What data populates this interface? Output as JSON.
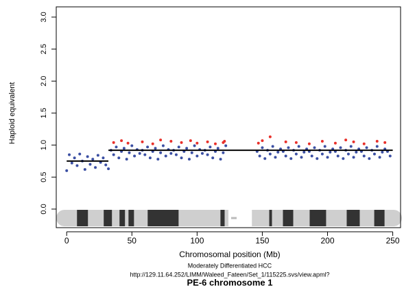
{
  "chart_data": {
    "type": "scatter",
    "title": "PE-6 chromosome 1",
    "subtitle": "Moderately Differentiated HCC",
    "source": "http://129.11.64.252/LIMM/Waleed_Fateen/Set_1/115225.svs/view.apml?",
    "x_label": "Chromosomal position (Mb)",
    "y_label": "Haploid equivalent",
    "xlim": [
      -8,
      256
    ],
    "ylim": [
      -0.29,
      3.16
    ],
    "xticks": [
      0,
      50,
      100,
      150,
      200,
      250
    ],
    "yticks": [
      {
        "value": 0,
        "label": "0.0"
      },
      {
        "value": 0.5,
        "label": "0.5"
      },
      {
        "value": 1,
        "label": "1.0"
      },
      {
        "value": 1.5,
        "label": "1.5"
      },
      {
        "value": 2,
        "label": "2.0"
      },
      {
        "value": 2.5,
        "label": "2.5"
      },
      {
        "value": 3,
        "label": "3.0"
      }
    ],
    "series": [
      {
        "color": "#3b4fa3",
        "x": [
          0,
          2,
          4,
          6,
          8,
          10,
          12,
          14,
          16,
          18,
          20,
          22,
          24,
          26,
          28,
          30,
          32,
          34,
          36,
          38,
          40,
          42,
          44,
          46,
          48,
          50,
          52,
          54,
          56,
          58,
          60,
          62,
          64,
          66,
          68,
          70,
          72,
          74,
          76,
          78,
          80,
          82,
          84,
          86,
          88,
          90,
          92,
          94,
          96,
          98,
          100,
          102,
          104,
          106,
          108,
          110,
          112,
          114,
          116,
          118,
          120,
          122,
          146,
          148,
          150,
          152,
          154,
          156,
          158,
          160,
          162,
          164,
          166,
          168,
          170,
          172,
          174,
          176,
          178,
          180,
          182,
          184,
          186,
          188,
          190,
          192,
          194,
          196,
          198,
          200,
          202,
          204,
          206,
          208,
          210,
          212,
          214,
          216,
          218,
          220,
          222,
          224,
          226,
          228,
          230,
          232,
          234,
          236,
          238,
          240,
          242,
          244,
          246,
          248
        ],
        "values": [
          0.6,
          0.85,
          0.72,
          0.8,
          0.68,
          0.86,
          0.75,
          0.62,
          0.82,
          0.7,
          0.78,
          0.65,
          0.84,
          0.73,
          0.8,
          0.69,
          0.63,
          0.92,
          0.85,
          0.97,
          0.8,
          0.9,
          0.95,
          0.78,
          0.88,
          0.99,
          0.83,
          0.93,
          0.87,
          0.92,
          0.85,
          0.97,
          0.8,
          0.9,
          0.95,
          0.78,
          0.88,
          0.99,
          0.83,
          0.93,
          0.87,
          0.92,
          0.85,
          0.97,
          0.8,
          0.9,
          0.95,
          0.78,
          0.88,
          0.99,
          0.83,
          0.93,
          0.87,
          0.92,
          0.85,
          0.97,
          0.8,
          0.9,
          0.95,
          0.78,
          0.88,
          0.99,
          0.9,
          0.83,
          0.96,
          0.79,
          0.92,
          0.86,
          0.98,
          0.81,
          0.89,
          0.94,
          0.9,
          0.83,
          0.96,
          0.79,
          0.92,
          0.86,
          0.98,
          0.81,
          0.89,
          0.94,
          0.9,
          0.83,
          0.96,
          0.79,
          0.92,
          0.86,
          0.98,
          0.81,
          0.89,
          0.94,
          0.9,
          0.83,
          0.96,
          0.79,
          0.92,
          0.86,
          0.98,
          0.81,
          0.89,
          0.94,
          0.9,
          0.83,
          0.96,
          0.79,
          0.92,
          0.86,
          0.98,
          0.81,
          0.89,
          0.94,
          0.9,
          0.83
        ]
      },
      {
        "color": "#e8302a",
        "x": [
          36,
          42,
          47,
          58,
          66,
          72,
          80,
          88,
          95,
          100,
          108,
          114,
          120,
          121,
          147,
          150,
          156,
          168,
          176,
          186,
          196,
          206,
          214,
          220,
          228,
          238,
          244
        ],
        "values": [
          1.04,
          1.07,
          1.03,
          1.05,
          1.02,
          1.08,
          1.06,
          1.04,
          1.07,
          1.03,
          1.05,
          1.02,
          1.04,
          1.06,
          1.03,
          1.07,
          1.13,
          1.05,
          1.04,
          1.02,
          1.06,
          1.03,
          1.08,
          1.05,
          1.02,
          1.06,
          1.04
        ]
      }
    ],
    "segments": [
      {
        "color": "#000000",
        "x": [
          0,
          32
        ],
        "values": [
          0.75,
          0.75
        ]
      },
      {
        "color": "#000000",
        "x": [
          32,
          250
        ],
        "values": [
          0.92,
          0.92
        ]
      }
    ],
    "ideogram_color": "#333333",
    "ideogram_bands": [
      [
        7.9,
        16.3
      ],
      [
        28.4,
        34.7
      ],
      [
        40.5,
        44.7
      ],
      [
        47.4,
        51.6
      ],
      [
        62.1,
        85.8
      ],
      [
        117.9,
        121.1
      ],
      [
        155.3,
        157.4
      ],
      [
        165.8,
        173.7
      ],
      [
        186.3,
        198.9
      ],
      [
        214.7,
        224.7
      ],
      [
        235.8,
        243.7
      ]
    ],
    "ideogram_gap": [
      124,
      142
    ]
  }
}
